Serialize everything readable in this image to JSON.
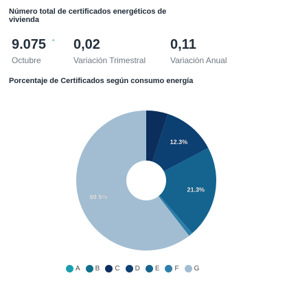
{
  "header": {
    "title": "Número total de certificados energéticos de vivienda"
  },
  "kpis": [
    {
      "value": "9.075",
      "trend_icon": "⌃",
      "label": "Octubre"
    },
    {
      "value": "0,02",
      "label": "Variación Trimestral"
    },
    {
      "value": "0,11",
      "label": "Variación Anual"
    }
  ],
  "chart_data": {
    "type": "pie",
    "title": "Porcentaje de Certificados según consumo energía",
    "inner_hole": true,
    "slices": [
      {
        "label": "A",
        "value": 0.0,
        "color": "#1a9fb0",
        "data_label": ""
      },
      {
        "label": "B",
        "value": 0.0,
        "color": "#0f6f8c",
        "data_label": ""
      },
      {
        "label": "C",
        "value": 5.0,
        "color": "#0b2e5c",
        "data_label": ""
      },
      {
        "label": "D",
        "value": 12.3,
        "color": "#0c3f72",
        "data_label": "12.3%"
      },
      {
        "label": "E",
        "value": 21.3,
        "color": "#14648f",
        "data_label": "21.3%"
      },
      {
        "label": "F",
        "value": 0.9,
        "color": "#2e7faa",
        "data_label": ""
      },
      {
        "label": "G",
        "value": 60.5,
        "color": "#a2bdd2",
        "data_label": "60.5%"
      }
    ],
    "legend": {
      "placement": "bottom",
      "items": [
        {
          "label": "A",
          "color": "#1a9fb0"
        },
        {
          "label": "B",
          "color": "#0f6f8c"
        },
        {
          "label": "C",
          "color": "#0b2e5c"
        },
        {
          "label": "D",
          "color": "#0c3f72"
        },
        {
          "label": "E",
          "color": "#14648f"
        },
        {
          "label": "F",
          "color": "#2e7faa"
        },
        {
          "label": "G",
          "color": "#a2bdd2"
        }
      ]
    }
  }
}
